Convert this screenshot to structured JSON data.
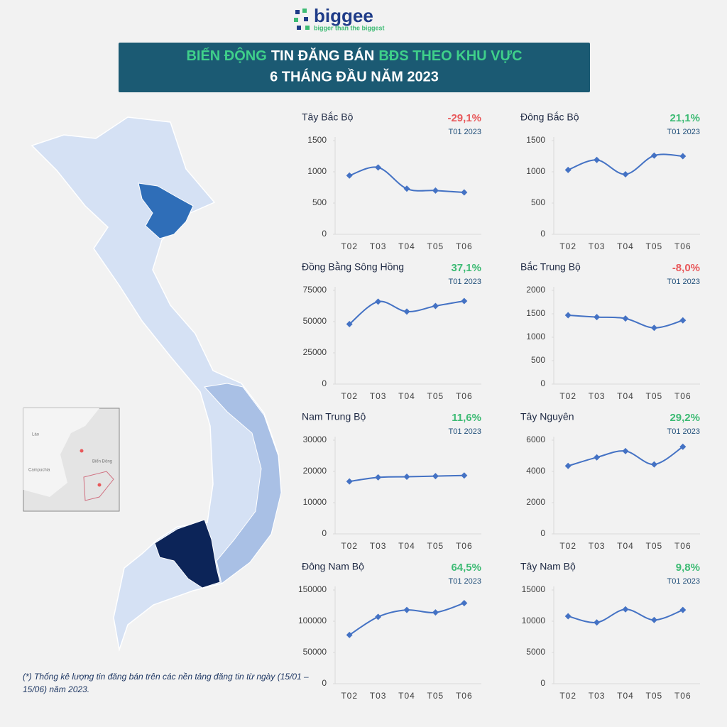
{
  "logo": {
    "name": "biggee",
    "tagline": "bigger than the biggest"
  },
  "title": [
    {
      "text": "BIẾN ĐỘNG",
      "color": "#3fd08a"
    },
    {
      "text": "TIN ĐĂNG BÁN",
      "color": "#ffffff"
    },
    {
      "text": "BĐS THEO KHU VỰC",
      "color": "#3fd08a"
    }
  ],
  "subtitle": "6 THÁNG ĐẦU NĂM 2023",
  "footnote": "(*) Thống kê lượng tin đăng bán trên các nền tảng đăng tin từ ngày (15/01 – 15/06) năm 2023.",
  "inset_labels": [
    "Lào",
    "Campuchia",
    "Biển Đông"
  ],
  "change_colors": {
    "up": "#3dbb74",
    "down": "#e8585a"
  },
  "chart_data": [
    {
      "type": "line",
      "title": "Tây Bắc Bộ",
      "change": {
        "value": -29.1,
        "label": "-29,1%"
      },
      "period": "T01 2023",
      "categories": [
        "T02",
        "T03",
        "T04",
        "T05",
        "T06"
      ],
      "values": [
        940,
        1070,
        730,
        700,
        670
      ],
      "color": "#4472c4",
      "ylim": [
        0,
        1500
      ],
      "yticks": [
        0,
        500,
        1000,
        1500
      ]
    },
    {
      "type": "line",
      "title": "Đông Bắc Bộ",
      "change": {
        "value": 21.1,
        "label": "21,1%"
      },
      "period": "T01 2023",
      "categories": [
        "T02",
        "T03",
        "T04",
        "T05",
        "T06"
      ],
      "values": [
        1030,
        1190,
        960,
        1260,
        1250
      ],
      "color": "#4472c4",
      "ylim": [
        0,
        1500
      ],
      "yticks": [
        0,
        500,
        1000,
        1500
      ]
    },
    {
      "type": "line",
      "title": "Đồng Bằng Sông Hồng",
      "change": {
        "value": 37.1,
        "label": "37,1%"
      },
      "period": "T01 2023",
      "categories": [
        "T02",
        "T03",
        "T04",
        "T05",
        "T06"
      ],
      "values": [
        48000,
        66000,
        58000,
        62500,
        66500
      ],
      "color": "#4472c4",
      "ylim": [
        0,
        75000
      ],
      "yticks": [
        0,
        25000,
        50000,
        75000
      ]
    },
    {
      "type": "line",
      "title": "Bắc Trung Bộ",
      "change": {
        "value": -8.0,
        "label": "-8,0%"
      },
      "period": "T01 2023",
      "categories": [
        "T02",
        "T03",
        "T04",
        "T05",
        "T06"
      ],
      "values": [
        1470,
        1430,
        1400,
        1200,
        1360
      ],
      "color": "#4472c4",
      "ylim": [
        0,
        2000
      ],
      "yticks": [
        0,
        500,
        1000,
        1500,
        2000
      ]
    },
    {
      "type": "line",
      "title": "Nam Trung Bộ",
      "change": {
        "value": 11.6,
        "label": "11,6%"
      },
      "period": "T01 2023",
      "categories": [
        "T02",
        "T03",
        "T04",
        "T05",
        "T06"
      ],
      "values": [
        16800,
        18100,
        18300,
        18500,
        18700
      ],
      "color": "#4472c4",
      "ylim": [
        0,
        30000
      ],
      "yticks": [
        0,
        10000,
        20000,
        30000
      ]
    },
    {
      "type": "line",
      "title": "Tây Nguyên",
      "change": {
        "value": 29.2,
        "label": "29,2%"
      },
      "period": "T01 2023",
      "categories": [
        "T02",
        "T03",
        "T04",
        "T05",
        "T06"
      ],
      "values": [
        4350,
        4900,
        5300,
        4450,
        5580
      ],
      "color": "#4472c4",
      "ylim": [
        0,
        6000
      ],
      "yticks": [
        0,
        2000,
        4000,
        6000
      ]
    },
    {
      "type": "line",
      "title": "Đông Nam Bộ",
      "change": {
        "value": 64.5,
        "label": "64,5%"
      },
      "period": "T01 2023",
      "categories": [
        "T02",
        "T03",
        "T04",
        "T05",
        "T06"
      ],
      "values": [
        78000,
        107000,
        118000,
        114000,
        129000
      ],
      "color": "#4472c4",
      "ylim": [
        0,
        150000
      ],
      "yticks": [
        0,
        50000,
        100000,
        150000
      ]
    },
    {
      "type": "line",
      "title": "Tây Nam Bộ",
      "change": {
        "value": 9.8,
        "label": "9,8%"
      },
      "period": "T01 2023",
      "categories": [
        "T02",
        "T03",
        "T04",
        "T05",
        "T06"
      ],
      "values": [
        10800,
        9800,
        11900,
        10200,
        11800
      ],
      "color": "#4472c4",
      "ylim": [
        0,
        15000
      ],
      "yticks": [
        0,
        5000,
        10000,
        15000
      ]
    }
  ]
}
